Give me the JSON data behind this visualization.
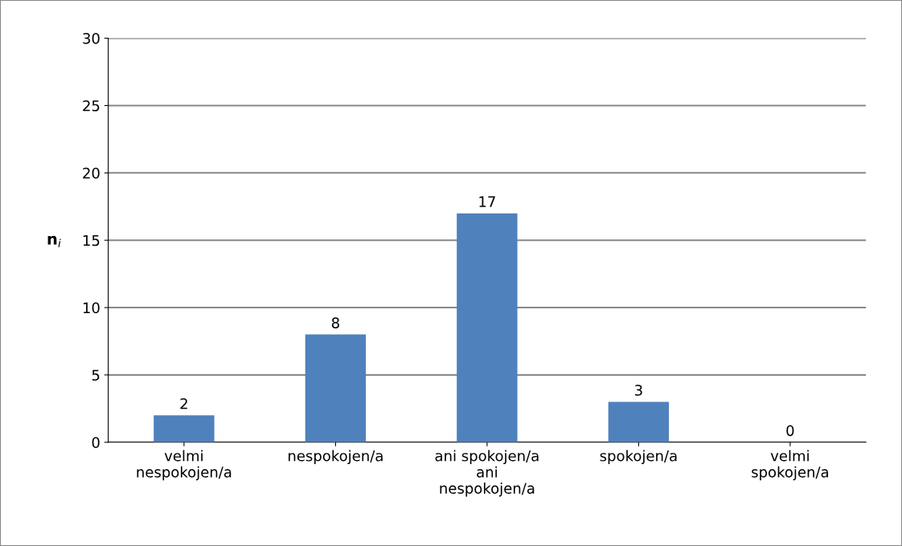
{
  "chart_data": {
    "type": "bar",
    "categories": [
      "velmi\nnespokojen/a",
      "nespokojen/a",
      "ani spokojen/a\nani\nnespokojen/a",
      "spokojen/a",
      "velmi\nspokojen/a"
    ],
    "values": [
      2,
      8,
      17,
      3,
      0
    ],
    "color": "#4f81bd",
    "ylabel": "n$_{i}$",
    "ylim": [
      0,
      30
    ],
    "yticks": [
      0,
      5,
      10,
      15,
      20,
      25,
      30
    ],
    "grid": "y",
    "data_labels": true
  }
}
